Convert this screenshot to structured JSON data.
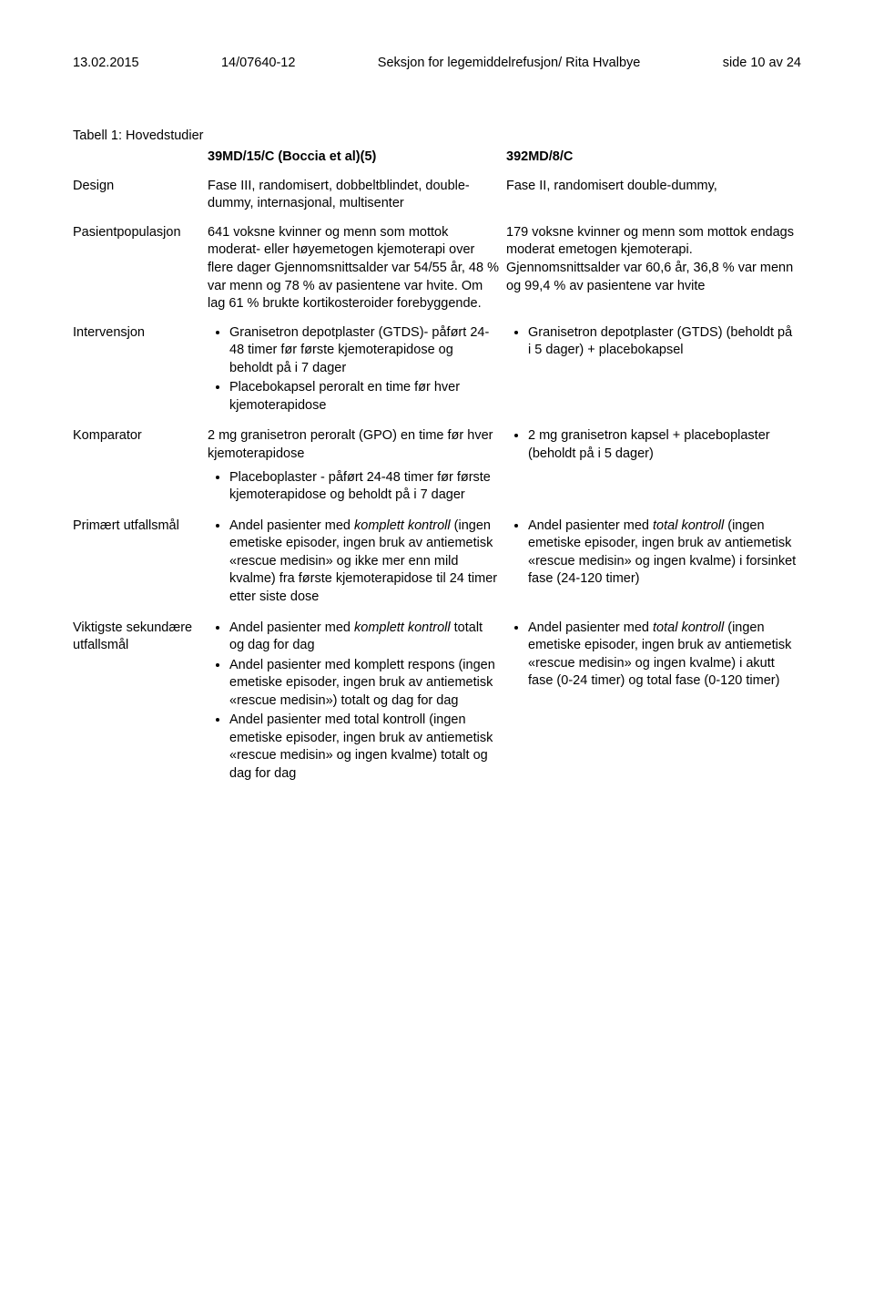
{
  "header": {
    "date": "13.02.2015",
    "ref": "14/07640-12",
    "section": "Seksjon for legemiddelrefusjon/ Rita Hvalbye",
    "page": "side 10 av 24"
  },
  "title": "Tabell 1: Hovedstudier",
  "col_headers": {
    "study1": "39MD/15/C (Boccia et al)(5)",
    "study2": "392MD/8/C"
  },
  "rows": {
    "design": {
      "label": "Design",
      "c1": "Fase III, randomisert, dobbeltblindet, double-dummy, internasjonal, multisenter",
      "c2": "Fase II, randomisert double-dummy,"
    },
    "pasientpopulasjon": {
      "label": "Pasientpopulasjon",
      "c1": "641 voksne kvinner og menn som mottok moderat- eller høyemetogen kjemoterapi over flere dager Gjennomsnittsalder var 54/55 år, 48 % var menn og 78 % av pasientene var hvite. Om lag 61 % brukte kortikosteroider forebyggende.",
      "c2": "179 voksne kvinner og menn som mottok endags moderat emetogen kjemoterapi. Gjennomsnittsalder var 60,6 år, 36,8 % var menn og 99,4 % av pasientene var hvite"
    },
    "intervensjon": {
      "label": "Intervensjon",
      "c1_items": [
        "Granisetron depotplaster (GTDS)- påført 24-48 timer før første kjemoterapidose og beholdt på i 7 dager",
        "Placebokapsel peroralt en time før hver kjemoterapidose"
      ],
      "c2_items": [
        "Granisetron depotplaster (GTDS) (beholdt på i 5 dager) + placebokapsel"
      ]
    },
    "komparator": {
      "label": "Komparator",
      "c1_lead": "2 mg granisetron peroralt (GPO) en time før hver kjemoterapidose",
      "c1_items": [
        "Placeboplaster - påført 24-48 timer før første kjemoterapidose og beholdt på i 7 dager"
      ],
      "c2_items": [
        "2 mg granisetron kapsel + placeboplaster (beholdt på i 5 dager)"
      ]
    },
    "primaert": {
      "label": "Primært utfallsmål",
      "c1_item_pre": "Andel pasienter med ",
      "c1_item_italic": "komplett kontroll",
      "c1_item_post": " (ingen emetiske episoder, ingen bruk av antiemetisk «rescue medisin» og ikke mer enn mild kvalme) fra første kjemoterapidose til 24 timer etter siste dose",
      "c2_item_pre": "Andel pasienter med ",
      "c2_item_italic": "total kontroll",
      "c2_item_post": " (ingen emetiske episoder, ingen bruk av antiemetisk «rescue medisin» og ingen kvalme) i forsinket fase (24-120 timer)"
    },
    "sekundaere": {
      "label": "Viktigste sekundære utfallsmål",
      "c1_items": [
        {
          "pre": "Andel pasienter med ",
          "it": "komplett kontroll",
          "post": " totalt og dag for dag"
        },
        {
          "pre": "Andel pasienter med komplett respons (ingen emetiske episoder, ingen bruk av antiemetisk «rescue medisin») totalt og dag for dag",
          "it": "",
          "post": ""
        },
        {
          "pre": "Andel pasienter med total kontroll (ingen emetiske episoder, ingen bruk av antiemetisk «rescue medisin» og ingen kvalme) totalt og dag for dag",
          "it": "",
          "post": ""
        }
      ],
      "c2_item_pre": "Andel pasienter med ",
      "c2_item_italic": "total kontroll",
      "c2_item_post": " (ingen emetiske episoder, ingen bruk av antiemetisk «rescue medisin» og ingen kvalme) i akutt fase (0-24 timer) og total fase (0-120 timer)"
    }
  }
}
